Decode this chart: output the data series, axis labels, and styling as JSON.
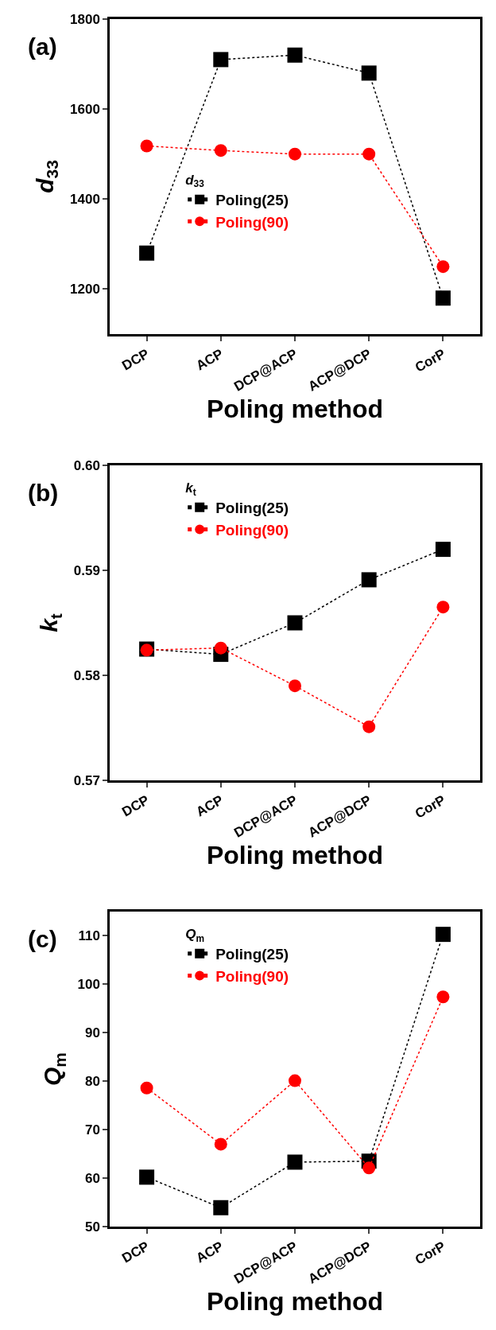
{
  "chart_data": [
    {
      "type": "line",
      "annotations": [
        "(a)"
      ],
      "xlabel": "Poling method",
      "ylabel": "d$_{33}$",
      "legend_title": "d$_{33}$",
      "legend": "center",
      "categories": [
        "DCP",
        "ACP",
        "DCP@ACP",
        "ACP@DCP",
        "CorP"
      ],
      "ylim": [
        1100,
        1800
      ],
      "yticks": [
        1200,
        1400,
        1600,
        1800
      ],
      "series": [
        {
          "name": "Poling(25)",
          "color": "#000000",
          "marker": "square",
          "line_style": "dotted",
          "values": [
            1280,
            1710,
            1720,
            1680,
            1180
          ]
        },
        {
          "name": "Poling(90)",
          "color": "#ff0000",
          "marker": "circle",
          "line_style": "dotted",
          "values": [
            1518,
            1508,
            1500,
            1500,
            1250
          ]
        }
      ]
    },
    {
      "type": "line",
      "annotations": [
        "(b)"
      ],
      "xlabel": "Poling method",
      "ylabel": "k$_{t}$",
      "legend_title": "k$_{t}$",
      "legend": "top left",
      "categories": [
        "DCP",
        "ACP",
        "DCP@ACP",
        "ACP@DCP",
        "CorP"
      ],
      "ylim": [
        0.57,
        0.6
      ],
      "yticks": [
        {
          "value": 0.57,
          "label": "0.57"
        },
        {
          "value": 0.58,
          "label": "0.58"
        },
        {
          "value": 0.59,
          "label": "0.59"
        },
        {
          "value": 0.6,
          "label": "0.60"
        }
      ],
      "series": [
        {
          "name": "Poling(25)",
          "color": "#000000",
          "marker": "square",
          "line_style": "dotted",
          "values": [
            0.5825,
            0.582,
            0.585,
            0.5891,
            0.592
          ]
        },
        {
          "name": "Poling(90)",
          "color": "#ff0000",
          "marker": "circle",
          "line_style": "dotted",
          "values": [
            0.5824,
            0.5826,
            0.579,
            0.5751,
            0.5865
          ]
        }
      ]
    },
    {
      "type": "line",
      "annotations": [
        "(c)"
      ],
      "xlabel": "Poling method",
      "ylabel": "Q$_{m}$",
      "legend_title": "Q$_{m}$",
      "legend": "top left",
      "categories": [
        "DCP",
        "ACP",
        "DCP@ACP",
        "ACP@DCP",
        "CorP"
      ],
      "ylim": [
        50,
        115
      ],
      "yticks": [
        50,
        60,
        70,
        80,
        90,
        100,
        110
      ],
      "series": [
        {
          "name": "Poling(25)",
          "color": "#000000",
          "marker": "square",
          "line_style": "dotted",
          "values": [
            60.2,
            53.9,
            63.3,
            63.5,
            110.3
          ]
        },
        {
          "name": "Poling(90)",
          "color": "#ff0000",
          "marker": "circle",
          "line_style": "dotted",
          "values": [
            78.6,
            67.0,
            80.1,
            62.1,
            97.4
          ]
        }
      ]
    }
  ]
}
